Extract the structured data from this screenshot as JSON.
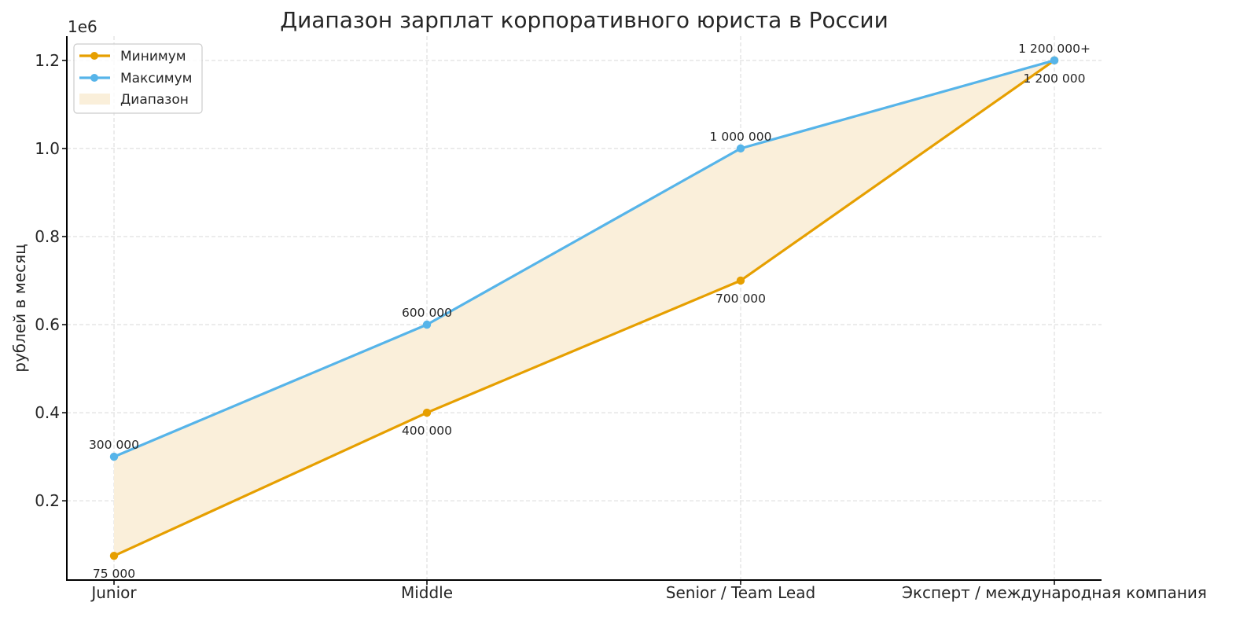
{
  "chart_data": {
    "type": "line",
    "title": "Диапазон зарплат корпоративного юриста в России",
    "xlabel": "",
    "ylabel": "рублей в месяц",
    "y_offset_label": "1e6",
    "categories": [
      "Junior",
      "Middle",
      "Senior / Team Lead",
      "Эксперт / международная компания"
    ],
    "series": [
      {
        "name": "Минимум",
        "color": "#E69F00",
        "values": [
          75000,
          400000,
          700000,
          1200000
        ],
        "labels": [
          "75 000",
          "400 000",
          "700 000",
          "1 200 000"
        ],
        "label_position": "below"
      },
      {
        "name": "Максимум",
        "color": "#56B4E9",
        "values": [
          300000,
          600000,
          1000000,
          1200000
        ],
        "labels": [
          "300 000",
          "600 000",
          "1 000 000",
          "1 200 000+"
        ],
        "label_position": "above"
      }
    ],
    "fill": {
      "name": "Диапазон",
      "color": "#FAEFDA",
      "between": [
        "Минимум",
        "Максимум"
      ]
    },
    "yticks": [
      0.2,
      0.4,
      0.6,
      0.8,
      1.0,
      1.2
    ],
    "ytick_labels": [
      "0.2",
      "0.4",
      "0.6",
      "0.8",
      "1.0",
      "1.2"
    ],
    "ylim": [
      20000,
      1255000
    ],
    "grid": true,
    "legend_position": "upper left"
  }
}
